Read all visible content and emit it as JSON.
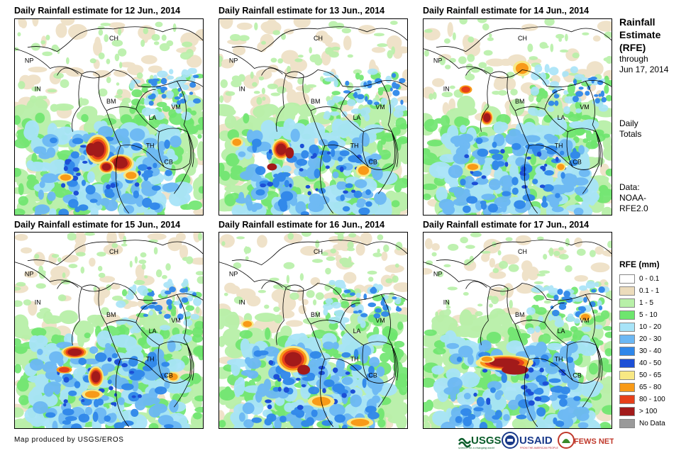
{
  "panels": [
    {
      "title": "Daily Rainfall estimate for 12 Jun., 2014"
    },
    {
      "title": "Daily Rainfall estimate for 13 Jun., 2014"
    },
    {
      "title": "Daily Rainfall estimate for 14 Jun., 2014"
    },
    {
      "title": "Daily Rainfall estimate for 15 Jun., 2014"
    },
    {
      "title": "Daily Rainfall estimate for 16 Jun., 2014"
    },
    {
      "title": "Daily Rainfall estimate for 17 Jun., 2014"
    }
  ],
  "country_labels": {
    "ch": "CH",
    "np": "NP",
    "in": "IN",
    "bm": "BM",
    "la": "LA",
    "vm": "VM",
    "th": "TH",
    "cb": "CB"
  },
  "sidebar": {
    "title_line1": "Rainfall",
    "title_line2": "Estimate",
    "title_line3": "(RFE)",
    "through_label": "through",
    "through_date": "Jun 17, 2014",
    "totals_line1": "Daily",
    "totals_line2": "Totals",
    "data_label": "Data:",
    "data_source_line1": "NOAA-",
    "data_source_line2": "RFE2.0"
  },
  "legend": {
    "title": "RFE (mm)",
    "items": [
      {
        "label": "0 - 0.1",
        "color": "#ffffff"
      },
      {
        "label": "0.1 - 1",
        "color": "#ecdcbc"
      },
      {
        "label": "1 - 5",
        "color": "#b8f0a8"
      },
      {
        "label": "5 - 10",
        "color": "#6ee66e"
      },
      {
        "label": "10 - 20",
        "color": "#a8e4f8"
      },
      {
        "label": "20 - 30",
        "color": "#6cb8f4"
      },
      {
        "label": "30 - 40",
        "color": "#2f87ea"
      },
      {
        "label": "40 - 50",
        "color": "#1c4fd6"
      },
      {
        "label": "50 - 65",
        "color": "#f8e884"
      },
      {
        "label": "65 - 80",
        "color": "#f89a18"
      },
      {
        "label": "80 - 100",
        "color": "#e6401a"
      },
      {
        "label": "> 100",
        "color": "#a21a1a"
      },
      {
        "label": "No Data",
        "color": "#9a9a9a"
      }
    ]
  },
  "footer": {
    "credit": "Map produced by USGS/EROS"
  },
  "logos": {
    "usgs": "USGS",
    "usgs_tagline": "science for a changing world",
    "usaid": "USAID",
    "usaid_tagline": "FROM THE AMERICAN PEOPLE",
    "fewsnet": "FEWS NET"
  }
}
